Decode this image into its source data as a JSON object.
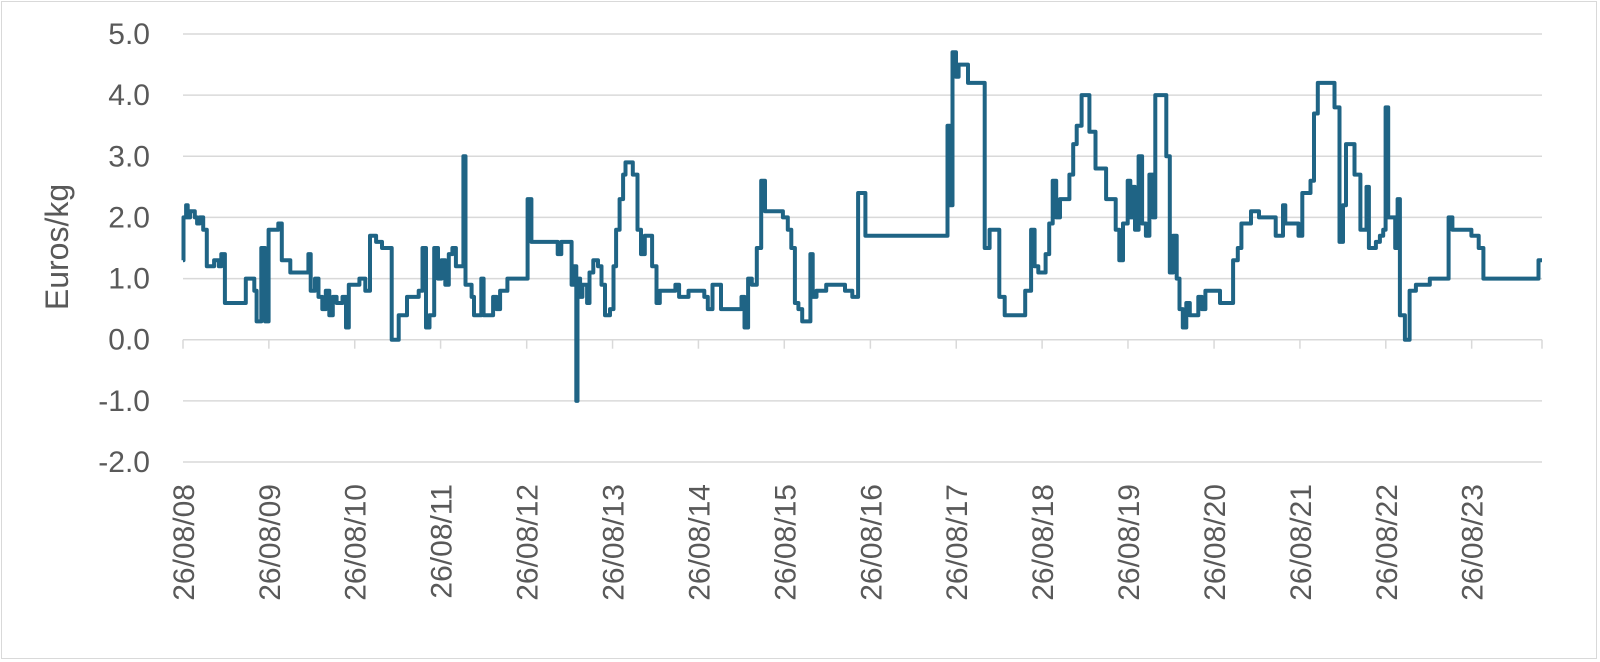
{
  "chart_data": {
    "type": "line",
    "title": "",
    "xlabel": "",
    "ylabel": "Euros/kg",
    "ylim": [
      -2.0,
      5.0
    ],
    "yticks": [
      "-2.0",
      "-1.0",
      "0.0",
      "1.0",
      "2.0",
      "3.0",
      "4.0",
      "5.0"
    ],
    "ytick_values": [
      -2,
      -1,
      0,
      1,
      2,
      3,
      4,
      5
    ],
    "xlim": [
      "2008-08-26",
      "2024-06-20"
    ],
    "xticks": [
      "26/08/08",
      "26/08/09",
      "26/08/10",
      "26/08/11",
      "26/08/12",
      "26/08/13",
      "26/08/14",
      "26/08/15",
      "26/08/16",
      "26/08/17",
      "26/08/18",
      "26/08/19",
      "26/08/20",
      "26/08/21",
      "26/08/22",
      "26/08/23"
    ],
    "xtick_dates": [
      "2008-08-26",
      "2009-08-26",
      "2010-08-26",
      "2011-08-26",
      "2012-08-26",
      "2013-08-26",
      "2014-08-26",
      "2015-08-26",
      "2016-08-26",
      "2017-08-26",
      "2018-08-26",
      "2019-08-26",
      "2020-08-26",
      "2021-08-26",
      "2022-08-26",
      "2023-08-26"
    ],
    "grid": "horizontal",
    "line_color": "#1f6485",
    "series": [
      {
        "name": "",
        "step": true,
        "points": [
          [
            "2008-08-26",
            1.3
          ],
          [
            "2008-08-28",
            2.0
          ],
          [
            "2008-09-08",
            2.2
          ],
          [
            "2008-09-15",
            2.0
          ],
          [
            "2008-09-25",
            2.1
          ],
          [
            "2008-10-15",
            2.0
          ],
          [
            "2008-10-25",
            1.9
          ],
          [
            "2008-11-05",
            2.0
          ],
          [
            "2008-11-20",
            1.8
          ],
          [
            "2008-12-05",
            1.2
          ],
          [
            "2009-01-05",
            1.3
          ],
          [
            "2009-01-25",
            1.2
          ],
          [
            "2009-02-05",
            1.4
          ],
          [
            "2009-02-20",
            0.6
          ],
          [
            "2009-05-20",
            1.0
          ],
          [
            "2009-06-25",
            0.8
          ],
          [
            "2009-07-05",
            0.3
          ],
          [
            "2009-07-25",
            1.5
          ],
          [
            "2009-08-10",
            0.3
          ],
          [
            "2009-08-25",
            1.8
          ],
          [
            "2009-10-05",
            1.9
          ],
          [
            "2009-10-20",
            1.3
          ],
          [
            "2009-11-25",
            1.1
          ],
          [
            "2010-02-10",
            1.4
          ],
          [
            "2010-02-20",
            0.8
          ],
          [
            "2010-03-10",
            1.0
          ],
          [
            "2010-03-25",
            0.7
          ],
          [
            "2010-04-10",
            0.5
          ],
          [
            "2010-04-25",
            0.8
          ],
          [
            "2010-05-10",
            0.4
          ],
          [
            "2010-05-25",
            0.7
          ],
          [
            "2010-06-10",
            0.6
          ],
          [
            "2010-07-05",
            0.7
          ],
          [
            "2010-07-20",
            0.2
          ],
          [
            "2010-08-01",
            0.9
          ],
          [
            "2010-09-15",
            1.0
          ],
          [
            "2010-10-10",
            0.8
          ],
          [
            "2010-10-30",
            1.7
          ],
          [
            "2010-11-25",
            1.6
          ],
          [
            "2010-12-20",
            1.5
          ],
          [
            "2011-01-30",
            0.0
          ],
          [
            "2011-03-01",
            0.4
          ],
          [
            "2011-04-05",
            0.7
          ],
          [
            "2011-05-25",
            0.8
          ],
          [
            "2011-06-10",
            1.5
          ],
          [
            "2011-06-25",
            0.2
          ],
          [
            "2011-07-10",
            0.4
          ],
          [
            "2011-07-30",
            1.5
          ],
          [
            "2011-08-15",
            1.0
          ],
          [
            "2011-08-30",
            1.3
          ],
          [
            "2011-09-15",
            0.9
          ],
          [
            "2011-09-30",
            1.4
          ],
          [
            "2011-10-15",
            1.5
          ],
          [
            "2011-10-30",
            1.2
          ],
          [
            "2011-12-01",
            3.0
          ],
          [
            "2011-12-10",
            0.9
          ],
          [
            "2012-01-05",
            0.7
          ],
          [
            "2012-01-15",
            0.4
          ],
          [
            "2012-01-30",
            0.4
          ],
          [
            "2012-02-15",
            1.0
          ],
          [
            "2012-02-25",
            0.4
          ],
          [
            "2012-04-05",
            0.7
          ],
          [
            "2012-04-20",
            0.5
          ],
          [
            "2012-05-05",
            0.8
          ],
          [
            "2012-06-05",
            1.0
          ],
          [
            "2012-08-26",
            1.0
          ],
          [
            "2012-08-30",
            2.3
          ],
          [
            "2012-09-15",
            1.6
          ],
          [
            "2013-01-05",
            1.4
          ],
          [
            "2013-01-20",
            1.6
          ],
          [
            "2013-03-05",
            0.9
          ],
          [
            "2013-03-15",
            1.2
          ],
          [
            "2013-03-25",
            -1.0
          ],
          [
            "2013-03-30",
            1.0
          ],
          [
            "2013-04-10",
            0.7
          ],
          [
            "2013-04-20",
            0.9
          ],
          [
            "2013-05-10",
            0.6
          ],
          [
            "2013-05-20",
            1.1
          ],
          [
            "2013-06-05",
            1.3
          ],
          [
            "2013-06-25",
            1.2
          ],
          [
            "2013-07-10",
            0.9
          ],
          [
            "2013-07-25",
            0.4
          ],
          [
            "2013-08-15",
            0.5
          ],
          [
            "2013-08-30",
            1.2
          ],
          [
            "2013-09-10",
            1.8
          ],
          [
            "2013-09-25",
            2.3
          ],
          [
            "2013-10-10",
            2.7
          ],
          [
            "2013-10-20",
            2.9
          ],
          [
            "2013-11-20",
            2.7
          ],
          [
            "2013-12-10",
            1.8
          ],
          [
            "2013-12-25",
            1.4
          ],
          [
            "2014-01-10",
            1.7
          ],
          [
            "2014-02-10",
            1.2
          ],
          [
            "2014-03-01",
            0.6
          ],
          [
            "2014-03-15",
            0.8
          ],
          [
            "2014-05-20",
            0.9
          ],
          [
            "2014-06-05",
            0.7
          ],
          [
            "2014-07-15",
            0.8
          ],
          [
            "2014-09-20",
            0.7
          ],
          [
            "2014-10-05",
            0.5
          ],
          [
            "2014-10-25",
            0.9
          ],
          [
            "2014-11-30",
            0.5
          ],
          [
            "2015-02-25",
            0.7
          ],
          [
            "2015-03-10",
            0.2
          ],
          [
            "2015-03-25",
            1.0
          ],
          [
            "2015-04-10",
            0.9
          ],
          [
            "2015-05-01",
            1.5
          ],
          [
            "2015-05-20",
            2.6
          ],
          [
            "2015-06-05",
            2.1
          ],
          [
            "2015-08-20",
            2.0
          ],
          [
            "2015-09-10",
            1.8
          ],
          [
            "2015-09-25",
            1.5
          ],
          [
            "2015-10-10",
            0.6
          ],
          [
            "2015-10-25",
            0.5
          ],
          [
            "2015-11-10",
            0.3
          ],
          [
            "2015-12-15",
            1.4
          ],
          [
            "2015-12-25",
            0.7
          ],
          [
            "2016-01-10",
            0.8
          ],
          [
            "2016-02-20",
            0.9
          ],
          [
            "2016-05-10",
            0.8
          ],
          [
            "2016-06-10",
            0.7
          ],
          [
            "2016-07-05",
            2.4
          ],
          [
            "2016-08-05",
            1.7
          ],
          [
            "2017-07-20",
            3.5
          ],
          [
            "2017-07-30",
            2.2
          ],
          [
            "2017-08-10",
            4.7
          ],
          [
            "2017-08-25",
            4.3
          ],
          [
            "2017-09-05",
            4.5
          ],
          [
            "2017-10-15",
            4.2
          ],
          [
            "2017-12-25",
            1.5
          ],
          [
            "2018-01-15",
            1.8
          ],
          [
            "2018-02-25",
            0.7
          ],
          [
            "2018-03-20",
            0.4
          ],
          [
            "2018-06-15",
            0.8
          ],
          [
            "2018-07-10",
            1.8
          ],
          [
            "2018-07-25",
            1.2
          ],
          [
            "2018-08-10",
            1.1
          ],
          [
            "2018-09-10",
            1.4
          ],
          [
            "2018-09-25",
            1.9
          ],
          [
            "2018-10-10",
            2.6
          ],
          [
            "2018-10-25",
            2.0
          ],
          [
            "2018-11-10",
            2.3
          ],
          [
            "2018-12-20",
            2.7
          ],
          [
            "2019-01-05",
            3.2
          ],
          [
            "2019-01-20",
            3.5
          ],
          [
            "2019-02-10",
            4.0
          ],
          [
            "2019-03-15",
            3.4
          ],
          [
            "2019-04-10",
            2.8
          ],
          [
            "2019-05-25",
            2.3
          ],
          [
            "2019-07-05",
            1.8
          ],
          [
            "2019-07-20",
            1.3
          ],
          [
            "2019-08-05",
            1.9
          ],
          [
            "2019-08-25",
            2.6
          ],
          [
            "2019-09-05",
            2.0
          ],
          [
            "2019-09-15",
            2.5
          ],
          [
            "2019-09-25",
            1.8
          ],
          [
            "2019-10-10",
            3.0
          ],
          [
            "2019-10-25",
            1.9
          ],
          [
            "2019-11-10",
            1.7
          ],
          [
            "2019-11-25",
            2.7
          ],
          [
            "2019-12-10",
            2.0
          ],
          [
            "2019-12-20",
            4.0
          ],
          [
            "2020-02-05",
            3.0
          ],
          [
            "2020-02-20",
            1.1
          ],
          [
            "2020-03-05",
            1.7
          ],
          [
            "2020-03-20",
            1.0
          ],
          [
            "2020-04-01",
            0.5
          ],
          [
            "2020-04-15",
            0.2
          ],
          [
            "2020-04-30",
            0.6
          ],
          [
            "2020-05-15",
            0.4
          ],
          [
            "2020-06-20",
            0.7
          ],
          [
            "2020-07-05",
            0.5
          ],
          [
            "2020-07-20",
            0.8
          ],
          [
            "2020-09-20",
            0.6
          ],
          [
            "2020-11-15",
            1.3
          ],
          [
            "2020-12-05",
            1.5
          ],
          [
            "2020-12-20",
            1.9
          ],
          [
            "2021-01-30",
            2.1
          ],
          [
            "2021-03-05",
            2.0
          ],
          [
            "2021-05-15",
            1.7
          ],
          [
            "2021-06-15",
            2.2
          ],
          [
            "2021-06-25",
            1.9
          ],
          [
            "2021-08-20",
            1.7
          ],
          [
            "2021-09-05",
            2.4
          ],
          [
            "2021-10-10",
            2.6
          ],
          [
            "2021-10-25",
            3.7
          ],
          [
            "2021-11-10",
            4.2
          ],
          [
            "2022-01-20",
            3.8
          ],
          [
            "2022-02-10",
            1.6
          ],
          [
            "2022-02-25",
            2.2
          ],
          [
            "2022-03-10",
            3.2
          ],
          [
            "2022-04-15",
            2.7
          ],
          [
            "2022-05-10",
            1.8
          ],
          [
            "2022-06-05",
            2.5
          ],
          [
            "2022-06-15",
            1.5
          ],
          [
            "2022-07-15",
            1.6
          ],
          [
            "2022-08-01",
            1.7
          ],
          [
            "2022-08-15",
            1.8
          ],
          [
            "2022-08-25",
            3.8
          ],
          [
            "2022-09-05",
            2.0
          ],
          [
            "2022-10-05",
            1.5
          ],
          [
            "2022-10-15",
            2.3
          ],
          [
            "2022-10-25",
            0.4
          ],
          [
            "2022-11-15",
            0.0
          ],
          [
            "2022-12-05",
            0.8
          ],
          [
            "2023-01-01",
            0.9
          ],
          [
            "2023-03-01",
            1.0
          ],
          [
            "2023-05-20",
            2.0
          ],
          [
            "2023-06-05",
            1.8
          ],
          [
            "2023-08-25",
            1.7
          ],
          [
            "2023-09-25",
            1.5
          ],
          [
            "2023-10-15",
            1.0
          ],
          [
            "2024-06-05",
            1.3
          ],
          [
            "2024-06-20",
            1.3
          ]
        ]
      }
    ]
  }
}
